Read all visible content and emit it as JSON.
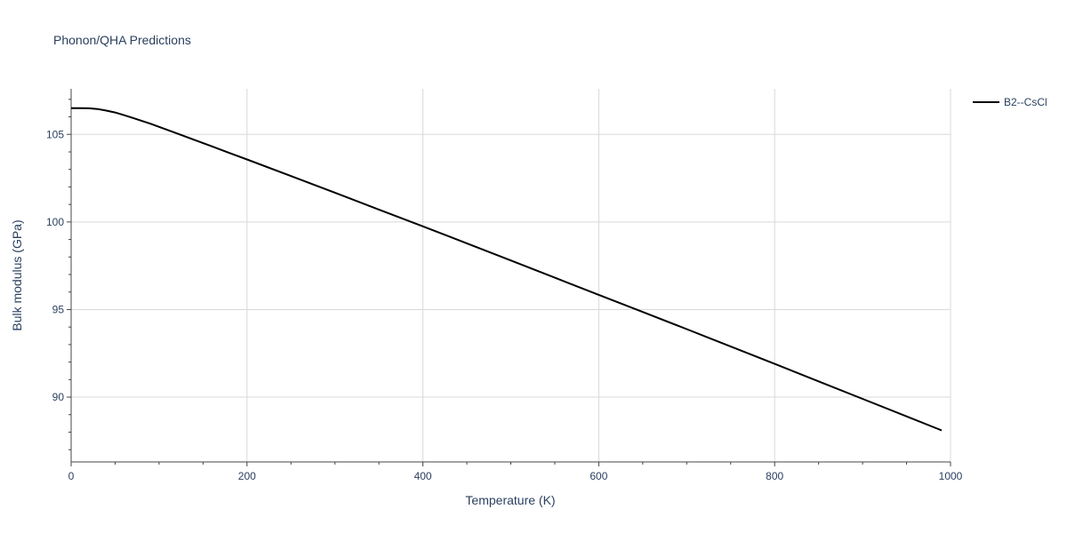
{
  "chart_data": {
    "type": "line",
    "title": "Phonon/QHA Predictions",
    "xlabel": "Temperature (K)",
    "ylabel": "Bulk modulus (GPa)",
    "xlim": [
      0,
      1000
    ],
    "ylim": [
      86.3,
      107.6
    ],
    "xticks": [
      0,
      200,
      400,
      600,
      800,
      1000
    ],
    "yticks": [
      90,
      95,
      100,
      105
    ],
    "x_minor_step": 50,
    "y_minor_step": 1,
    "grid": true,
    "legend_position": "top-right",
    "series": [
      {
        "name": "B2--CsCl",
        "color": "#000000",
        "x": [
          0,
          10,
          20,
          30,
          40,
          50,
          60,
          70,
          80,
          90,
          100,
          120,
          140,
          160,
          180,
          200,
          250,
          300,
          350,
          400,
          450,
          500,
          550,
          600,
          650,
          700,
          750,
          800,
          850,
          900,
          950,
          990
        ],
        "y": [
          106.5,
          106.5,
          106.49,
          106.45,
          106.36,
          106.25,
          106.1,
          105.94,
          105.78,
          105.61,
          105.43,
          105.06,
          104.69,
          104.32,
          103.94,
          103.57,
          102.62,
          101.67,
          100.71,
          99.75,
          98.78,
          97.8,
          96.82,
          95.84,
          94.86,
          93.88,
          92.89,
          91.9,
          90.9,
          89.9,
          88.9,
          88.1
        ]
      }
    ]
  }
}
